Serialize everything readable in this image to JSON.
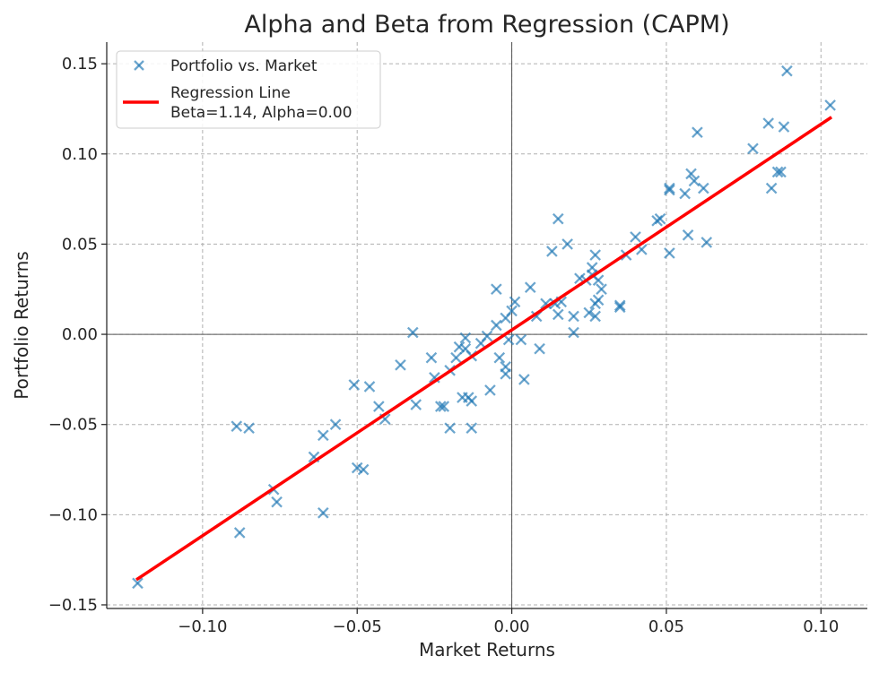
{
  "chart_data": {
    "type": "scatter",
    "title": "Alpha and Beta from Regression (CAPM)",
    "xlabel": "Market Returns",
    "ylabel": "Portfolio Returns",
    "xlim": [
      -0.131,
      0.115
    ],
    "ylim": [
      -0.152,
      0.162
    ],
    "x_ticks": [
      -0.1,
      -0.05,
      0.0,
      0.05,
      0.1
    ],
    "x_tick_labels": [
      "−0.10",
      "−0.05",
      "0.00",
      "0.05",
      "0.10"
    ],
    "y_ticks": [
      -0.15,
      -0.1,
      -0.05,
      0.0,
      0.05,
      0.1,
      0.15
    ],
    "y_tick_labels": [
      "−0.15",
      "−0.10",
      "−0.05",
      "0.00",
      "0.05",
      "0.10",
      "0.15"
    ],
    "grid": true,
    "legend_position": "top-left",
    "series": [
      {
        "name": "Portfolio vs. Market",
        "type": "scatter",
        "marker": "x",
        "color": "#1f77b4",
        "points": [
          [
            -0.121,
            -0.138
          ],
          [
            -0.089,
            -0.051
          ],
          [
            -0.085,
            -0.052
          ],
          [
            -0.088,
            -0.11
          ],
          [
            -0.077,
            -0.086
          ],
          [
            -0.076,
            -0.093
          ],
          [
            -0.064,
            -0.068
          ],
          [
            -0.061,
            -0.056
          ],
          [
            -0.061,
            -0.099
          ],
          [
            -0.057,
            -0.05
          ],
          [
            -0.051,
            -0.028
          ],
          [
            -0.05,
            -0.074
          ],
          [
            -0.048,
            -0.075
          ],
          [
            -0.046,
            -0.029
          ],
          [
            -0.043,
            -0.04
          ],
          [
            -0.041,
            -0.047
          ],
          [
            -0.036,
            -0.017
          ],
          [
            -0.032,
            0.001
          ],
          [
            -0.031,
            -0.039
          ],
          [
            -0.026,
            -0.013
          ],
          [
            -0.025,
            -0.024
          ],
          [
            -0.023,
            -0.04
          ],
          [
            -0.022,
            -0.04
          ],
          [
            -0.02,
            -0.052
          ],
          [
            -0.02,
            -0.02
          ],
          [
            -0.018,
            -0.013
          ],
          [
            -0.017,
            -0.007
          ],
          [
            -0.016,
            -0.035
          ],
          [
            -0.015,
            -0.008
          ],
          [
            -0.015,
            -0.002
          ],
          [
            -0.014,
            -0.035
          ],
          [
            -0.013,
            -0.012
          ],
          [
            -0.013,
            -0.052
          ],
          [
            -0.013,
            -0.037
          ],
          [
            -0.01,
            -0.005
          ],
          [
            -0.008,
            -0.001
          ],
          [
            -0.007,
            -0.031
          ],
          [
            -0.005,
            0.005
          ],
          [
            -0.005,
            0.025
          ],
          [
            -0.004,
            -0.013
          ],
          [
            -0.002,
            -0.022
          ],
          [
            -0.002,
            -0.018
          ],
          [
            -0.002,
            0.009
          ],
          [
            -0.001,
            -0.003
          ],
          [
            0.0,
            0.013
          ],
          [
            0.001,
            0.018
          ],
          [
            0.003,
            -0.003
          ],
          [
            0.004,
            -0.025
          ],
          [
            0.006,
            0.026
          ],
          [
            0.008,
            0.01
          ],
          [
            0.009,
            -0.008
          ],
          [
            0.011,
            0.017
          ],
          [
            0.013,
            0.046
          ],
          [
            0.014,
            0.017
          ],
          [
            0.015,
            0.011
          ],
          [
            0.015,
            0.064
          ],
          [
            0.016,
            0.018
          ],
          [
            0.018,
            0.05
          ],
          [
            0.02,
            0.001
          ],
          [
            0.02,
            0.01
          ],
          [
            0.022,
            0.031
          ],
          [
            0.024,
            0.03
          ],
          [
            0.025,
            0.012
          ],
          [
            0.026,
            0.033
          ],
          [
            0.026,
            0.037
          ],
          [
            0.027,
            0.01
          ],
          [
            0.027,
            0.044
          ],
          [
            0.027,
            0.017
          ],
          [
            0.028,
            0.019
          ],
          [
            0.028,
            0.03
          ],
          [
            0.029,
            0.025
          ],
          [
            0.035,
            0.016
          ],
          [
            0.035,
            0.015
          ],
          [
            0.037,
            0.044
          ],
          [
            0.04,
            0.054
          ],
          [
            0.042,
            0.047
          ],
          [
            0.047,
            0.063
          ],
          [
            0.048,
            0.064
          ],
          [
            0.051,
            0.045
          ],
          [
            0.051,
            0.081
          ],
          [
            0.051,
            0.08
          ],
          [
            0.056,
            0.078
          ],
          [
            0.057,
            0.055
          ],
          [
            0.058,
            0.089
          ],
          [
            0.059,
            0.085
          ],
          [
            0.06,
            0.112
          ],
          [
            0.062,
            0.081
          ],
          [
            0.063,
            0.051
          ],
          [
            0.078,
            0.103
          ],
          [
            0.083,
            0.117
          ],
          [
            0.084,
            0.081
          ],
          [
            0.086,
            0.09
          ],
          [
            0.087,
            0.09
          ],
          [
            0.088,
            0.115
          ],
          [
            0.089,
            0.146
          ],
          [
            0.103,
            0.127
          ]
        ]
      },
      {
        "name": "Regression Line\nBeta=1.14, Alpha=0.00",
        "legend_lines": [
          "Regression Line",
          "Beta=1.14, Alpha=0.00"
        ],
        "type": "line",
        "color": "#ff0000",
        "beta": 1.14,
        "alpha": 0.0,
        "x": [
          -0.121,
          0.103
        ],
        "y": [
          -0.1356,
          0.1199
        ]
      }
    ]
  }
}
